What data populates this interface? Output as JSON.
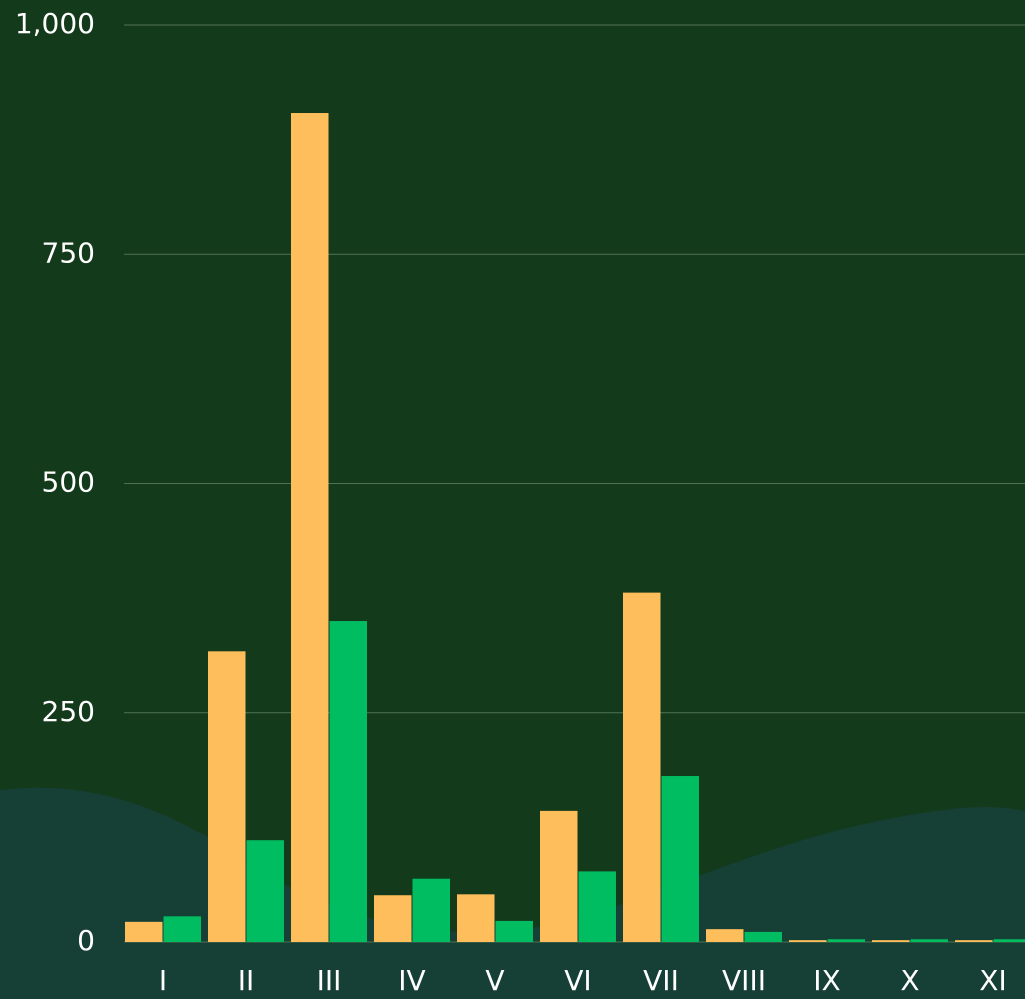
{
  "chart_data": {
    "type": "bar",
    "categories": [
      "I",
      "II",
      "III",
      "IV",
      "V",
      "VI",
      "VII",
      "VIII",
      "IX",
      "X",
      "XI"
    ],
    "series": [
      {
        "color": "#ffbe5c",
        "values": [
          22,
          317,
          904,
          51,
          52,
          143,
          381,
          14,
          2,
          2,
          2
        ]
      },
      {
        "color": "#00bd62",
        "values": [
          28,
          111,
          350,
          69,
          23,
          77,
          181,
          11,
          3,
          3,
          3
        ]
      }
    ],
    "ylim": [
      0,
      1000
    ],
    "yticks": [
      0,
      250,
      500,
      750,
      {
        "value": 1000,
        "label": "1,000"
      }
    ],
    "grid": true
  }
}
